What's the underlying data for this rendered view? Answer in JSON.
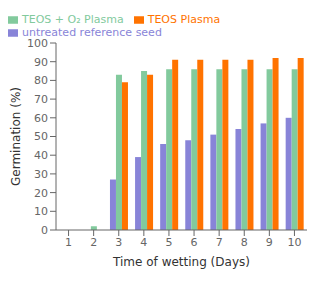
{
  "chart_data": {
    "type": "bar",
    "categories": [
      "1",
      "2",
      "3",
      "4",
      "5",
      "6",
      "7",
      "8",
      "9",
      "10"
    ],
    "series": [
      {
        "name": "untreated reference seed",
        "color": "#8884d8",
        "values": [
          0,
          0,
          27,
          39,
          46,
          48,
          51,
          54,
          57,
          60
        ]
      },
      {
        "name": "TEOS + O₂ Plasma",
        "color": "#82ca9d",
        "values": [
          0,
          2,
          83,
          85,
          86,
          86,
          86,
          86,
          86,
          86
        ]
      },
      {
        "name": "TEOS Plasma",
        "color": "#ff7300",
        "values": [
          0,
          0,
          79,
          83,
          91,
          91,
          91,
          91,
          92,
          92
        ]
      }
    ],
    "xlabel": "Time of wetting (Days)",
    "ylabel": "Germination (%)",
    "ylim": [
      0,
      100
    ],
    "yticks": [
      0,
      10,
      20,
      30,
      40,
      50,
      60,
      70,
      80,
      90,
      100
    ],
    "grid": false,
    "legend": "upper left"
  }
}
